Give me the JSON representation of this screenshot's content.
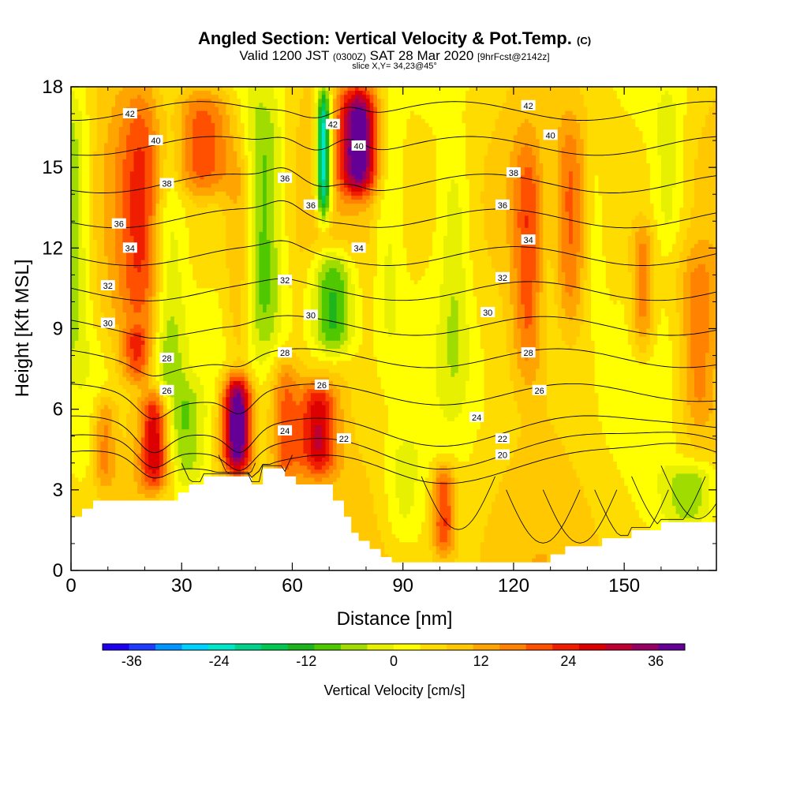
{
  "header": {
    "title": "Angled Section: Vertical Velocity & Pot.Temp.",
    "title_unit": "(C)",
    "valid_prefix": "Valid 1200 JST",
    "valid_utc": "(0300Z)",
    "valid_date": "SAT 28 Mar 2020",
    "forecast": "[9hrFcst@2142z]",
    "slice": "slice X,Y= 34,23@45°"
  },
  "chart_data": {
    "type": "heatmap",
    "xlabel": "Distance [nm]",
    "ylabel": "Height [Kft MSL]",
    "xlim": [
      0,
      175
    ],
    "ylim": [
      0,
      18
    ],
    "x_ticks": [
      0,
      30,
      60,
      90,
      120,
      150
    ],
    "y_ticks": [
      0,
      3,
      6,
      9,
      12,
      15,
      18
    ],
    "colorbar": {
      "label": "Vertical Velocity [cm/s]",
      "ticks": [
        -36,
        -24,
        -12,
        0,
        12,
        24,
        36
      ],
      "range": [
        -40,
        40
      ],
      "colors": [
        "#1e00f0",
        "#1e3cff",
        "#0096ff",
        "#00d2ff",
        "#00e6c8",
        "#00d28c",
        "#00c850",
        "#1eb41e",
        "#50c800",
        "#a0dc00",
        "#e6f000",
        "#ffff00",
        "#ffdc00",
        "#ffc800",
        "#ffa500",
        "#ff8200",
        "#ff5000",
        "#f01e00",
        "#dc0000",
        "#be0032",
        "#960064",
        "#640096"
      ]
    },
    "velocity_features": [
      {
        "x": 0,
        "x_halfwidth": 5,
        "h_bottom": 8,
        "h_top": 18,
        "value": -14
      },
      {
        "x": 6,
        "x_halfwidth": 7,
        "h_bottom": 2,
        "h_top": 9,
        "value": -5
      },
      {
        "x": 9,
        "x_halfwidth": 3,
        "h_bottom": 3,
        "h_top": 6.5,
        "value": 12
      },
      {
        "x": 18,
        "x_halfwidth": 4,
        "h_bottom": 7,
        "h_top": 9,
        "value": 12
      },
      {
        "x": 23,
        "x_halfwidth": 4,
        "h_bottom": 3,
        "h_top": 6.8,
        "value": 28
      },
      {
        "x": 20,
        "x_halfwidth": 7,
        "h_bottom": 8,
        "h_top": 18,
        "value": 15
      },
      {
        "x": 26,
        "x_halfwidth": 5,
        "h_bottom": 3,
        "h_top": 18,
        "value": -14
      },
      {
        "x": 32,
        "x_halfwidth": 4,
        "h_bottom": 3,
        "h_top": 7,
        "value": -8
      },
      {
        "x": 36,
        "x_halfwidth": 8,
        "h_bottom": 14,
        "h_top": 18,
        "value": 16
      },
      {
        "x": 45,
        "x_halfwidth": 4,
        "h_bottom": 3.5,
        "h_top": 7.2,
        "value": 40
      },
      {
        "x": 46,
        "x_halfwidth": 4,
        "h_bottom": 7,
        "h_top": 16,
        "value": 10
      },
      {
        "x": 52,
        "x_halfwidth": 6,
        "h_bottom": 8,
        "h_top": 18,
        "value": -15
      },
      {
        "x": 58,
        "x_halfwidth": 4,
        "h_bottom": 3,
        "h_top": 8,
        "value": 14
      },
      {
        "x": 67,
        "x_halfwidth": 5,
        "h_bottom": 3.5,
        "h_top": 7,
        "value": 22
      },
      {
        "x": 68.5,
        "x_halfwidth": 2,
        "h_bottom": 13,
        "h_top": 18,
        "value": -34
      },
      {
        "x": 71,
        "x_halfwidth": 6,
        "h_bottom": 8,
        "h_top": 12,
        "value": -20
      },
      {
        "x": 78,
        "x_halfwidth": 5,
        "h_bottom": 14,
        "h_top": 18,
        "value": 34
      },
      {
        "x": 86,
        "x_halfwidth": 4,
        "h_bottom": 8,
        "h_top": 18,
        "value": -7
      },
      {
        "x": 90,
        "x_halfwidth": 5,
        "h_bottom": 1,
        "h_top": 5,
        "value": -6
      },
      {
        "x": 101,
        "x_halfwidth": 3,
        "h_bottom": 0.5,
        "h_top": 4,
        "value": 18
      },
      {
        "x": 104,
        "x_halfwidth": 4,
        "h_bottom": 6,
        "h_top": 16,
        "value": -7
      },
      {
        "x": 124,
        "x_halfwidth": 4,
        "h_bottom": 7,
        "h_top": 16,
        "value": 12
      },
      {
        "x": 130,
        "x_halfwidth": 4,
        "h_bottom": 8,
        "h_top": 17,
        "value": -6
      },
      {
        "x": 135,
        "x_halfwidth": 4,
        "h_bottom": 9,
        "h_top": 17,
        "value": 10
      },
      {
        "x": 142,
        "x_halfwidth": 3,
        "h_bottom": 9,
        "h_top": 16,
        "value": -5
      },
      {
        "x": 155,
        "x_halfwidth": 3,
        "h_bottom": 8,
        "h_top": 13,
        "value": 13
      },
      {
        "x": 162,
        "x_halfwidth": 4,
        "h_bottom": 12,
        "h_top": 18,
        "value": -7
      },
      {
        "x": 170,
        "x_halfwidth": 5,
        "h_bottom": 5,
        "h_top": 12,
        "value": 12
      },
      {
        "x": 168,
        "x_halfwidth": 8,
        "h_bottom": 1.5,
        "h_top": 4,
        "value": -12
      }
    ],
    "terrain": [
      [
        0,
        2.0
      ],
      [
        3,
        2.0
      ],
      [
        3,
        2.3
      ],
      [
        6,
        2.3
      ],
      [
        6,
        2.6
      ],
      [
        29,
        2.6
      ],
      [
        29,
        2.9
      ],
      [
        32,
        2.9
      ],
      [
        32,
        3.2
      ],
      [
        36,
        3.2
      ],
      [
        36,
        3.5
      ],
      [
        49,
        3.5
      ],
      [
        49,
        3.2
      ],
      [
        52,
        3.2
      ],
      [
        52,
        3.8
      ],
      [
        58,
        3.8
      ],
      [
        58,
        3.5
      ],
      [
        61,
        3.5
      ],
      [
        61,
        3.2
      ],
      [
        71,
        3.2
      ],
      [
        71,
        2.6
      ],
      [
        74,
        2.6
      ],
      [
        74,
        2.0
      ],
      [
        76,
        2.0
      ],
      [
        76,
        1.4
      ],
      [
        78,
        1.4
      ],
      [
        78,
        1.1
      ],
      [
        81,
        1.1
      ],
      [
        81,
        0.8
      ],
      [
        84,
        0.8
      ],
      [
        84,
        0.5
      ],
      [
        87,
        0.5
      ],
      [
        87,
        0.3
      ],
      [
        130,
        0.3
      ],
      [
        130,
        0.6
      ],
      [
        134,
        0.6
      ],
      [
        134,
        0.9
      ],
      [
        144,
        0.9
      ],
      [
        144,
        1.2
      ],
      [
        152,
        1.2
      ],
      [
        152,
        1.5
      ],
      [
        160,
        1.5
      ],
      [
        160,
        1.8
      ],
      [
        175,
        1.8
      ]
    ],
    "isentropes": [
      {
        "value": 20,
        "base": 4.1
      },
      {
        "value": 22,
        "base": 4.7
      },
      {
        "value": 24,
        "base": 5.4
      },
      {
        "value": 26,
        "base": 6.6
      },
      {
        "value": 28,
        "base": 7.9
      },
      {
        "value": 30,
        "base": 9.1
      },
      {
        "value": 32,
        "base": 10.4
      },
      {
        "value": 34,
        "base": 11.7
      },
      {
        "value": 36,
        "base": 13.1
      },
      {
        "value": 38,
        "base": 14.4
      },
      {
        "value": 40,
        "base": 15.8
      },
      {
        "value": 42,
        "base": 17.1
      }
    ],
    "contour_labels": [
      {
        "text": "42",
        "x": 16,
        "y": 17.0
      },
      {
        "text": "40",
        "x": 23,
        "y": 16.0
      },
      {
        "text": "38",
        "x": 26,
        "y": 14.4
      },
      {
        "text": "36",
        "x": 13,
        "y": 12.9
      },
      {
        "text": "34",
        "x": 16,
        "y": 12.0
      },
      {
        "text": "32",
        "x": 10,
        "y": 10.6
      },
      {
        "text": "30",
        "x": 10,
        "y": 9.2
      },
      {
        "text": "28",
        "x": 26,
        "y": 7.9
      },
      {
        "text": "26",
        "x": 26,
        "y": 6.7
      },
      {
        "text": "36",
        "x": 58,
        "y": 14.6
      },
      {
        "text": "36",
        "x": 65,
        "y": 13.6
      },
      {
        "text": "42",
        "x": 71,
        "y": 16.6
      },
      {
        "text": "40",
        "x": 78,
        "y": 15.8
      },
      {
        "text": "34",
        "x": 78,
        "y": 12.0
      },
      {
        "text": "32",
        "x": 58,
        "y": 10.8
      },
      {
        "text": "30",
        "x": 65,
        "y": 9.5
      },
      {
        "text": "28",
        "x": 58,
        "y": 8.1
      },
      {
        "text": "26",
        "x": 68,
        "y": 6.9
      },
      {
        "text": "24",
        "x": 58,
        "y": 5.2
      },
      {
        "text": "22",
        "x": 74,
        "y": 4.9
      },
      {
        "text": "42",
        "x": 124,
        "y": 17.3
      },
      {
        "text": "40",
        "x": 130,
        "y": 16.2
      },
      {
        "text": "38",
        "x": 120,
        "y": 14.8
      },
      {
        "text": "36",
        "x": 117,
        "y": 13.6
      },
      {
        "text": "34",
        "x": 124,
        "y": 12.3
      },
      {
        "text": "32",
        "x": 117,
        "y": 10.9
      },
      {
        "text": "30",
        "x": 113,
        "y": 9.6
      },
      {
        "text": "28",
        "x": 124,
        "y": 8.1
      },
      {
        "text": "26",
        "x": 127,
        "y": 6.7
      },
      {
        "text": "24",
        "x": 110,
        "y": 5.7
      },
      {
        "text": "22",
        "x": 117,
        "y": 4.9
      },
      {
        "text": "20",
        "x": 117,
        "y": 4.3
      }
    ]
  }
}
